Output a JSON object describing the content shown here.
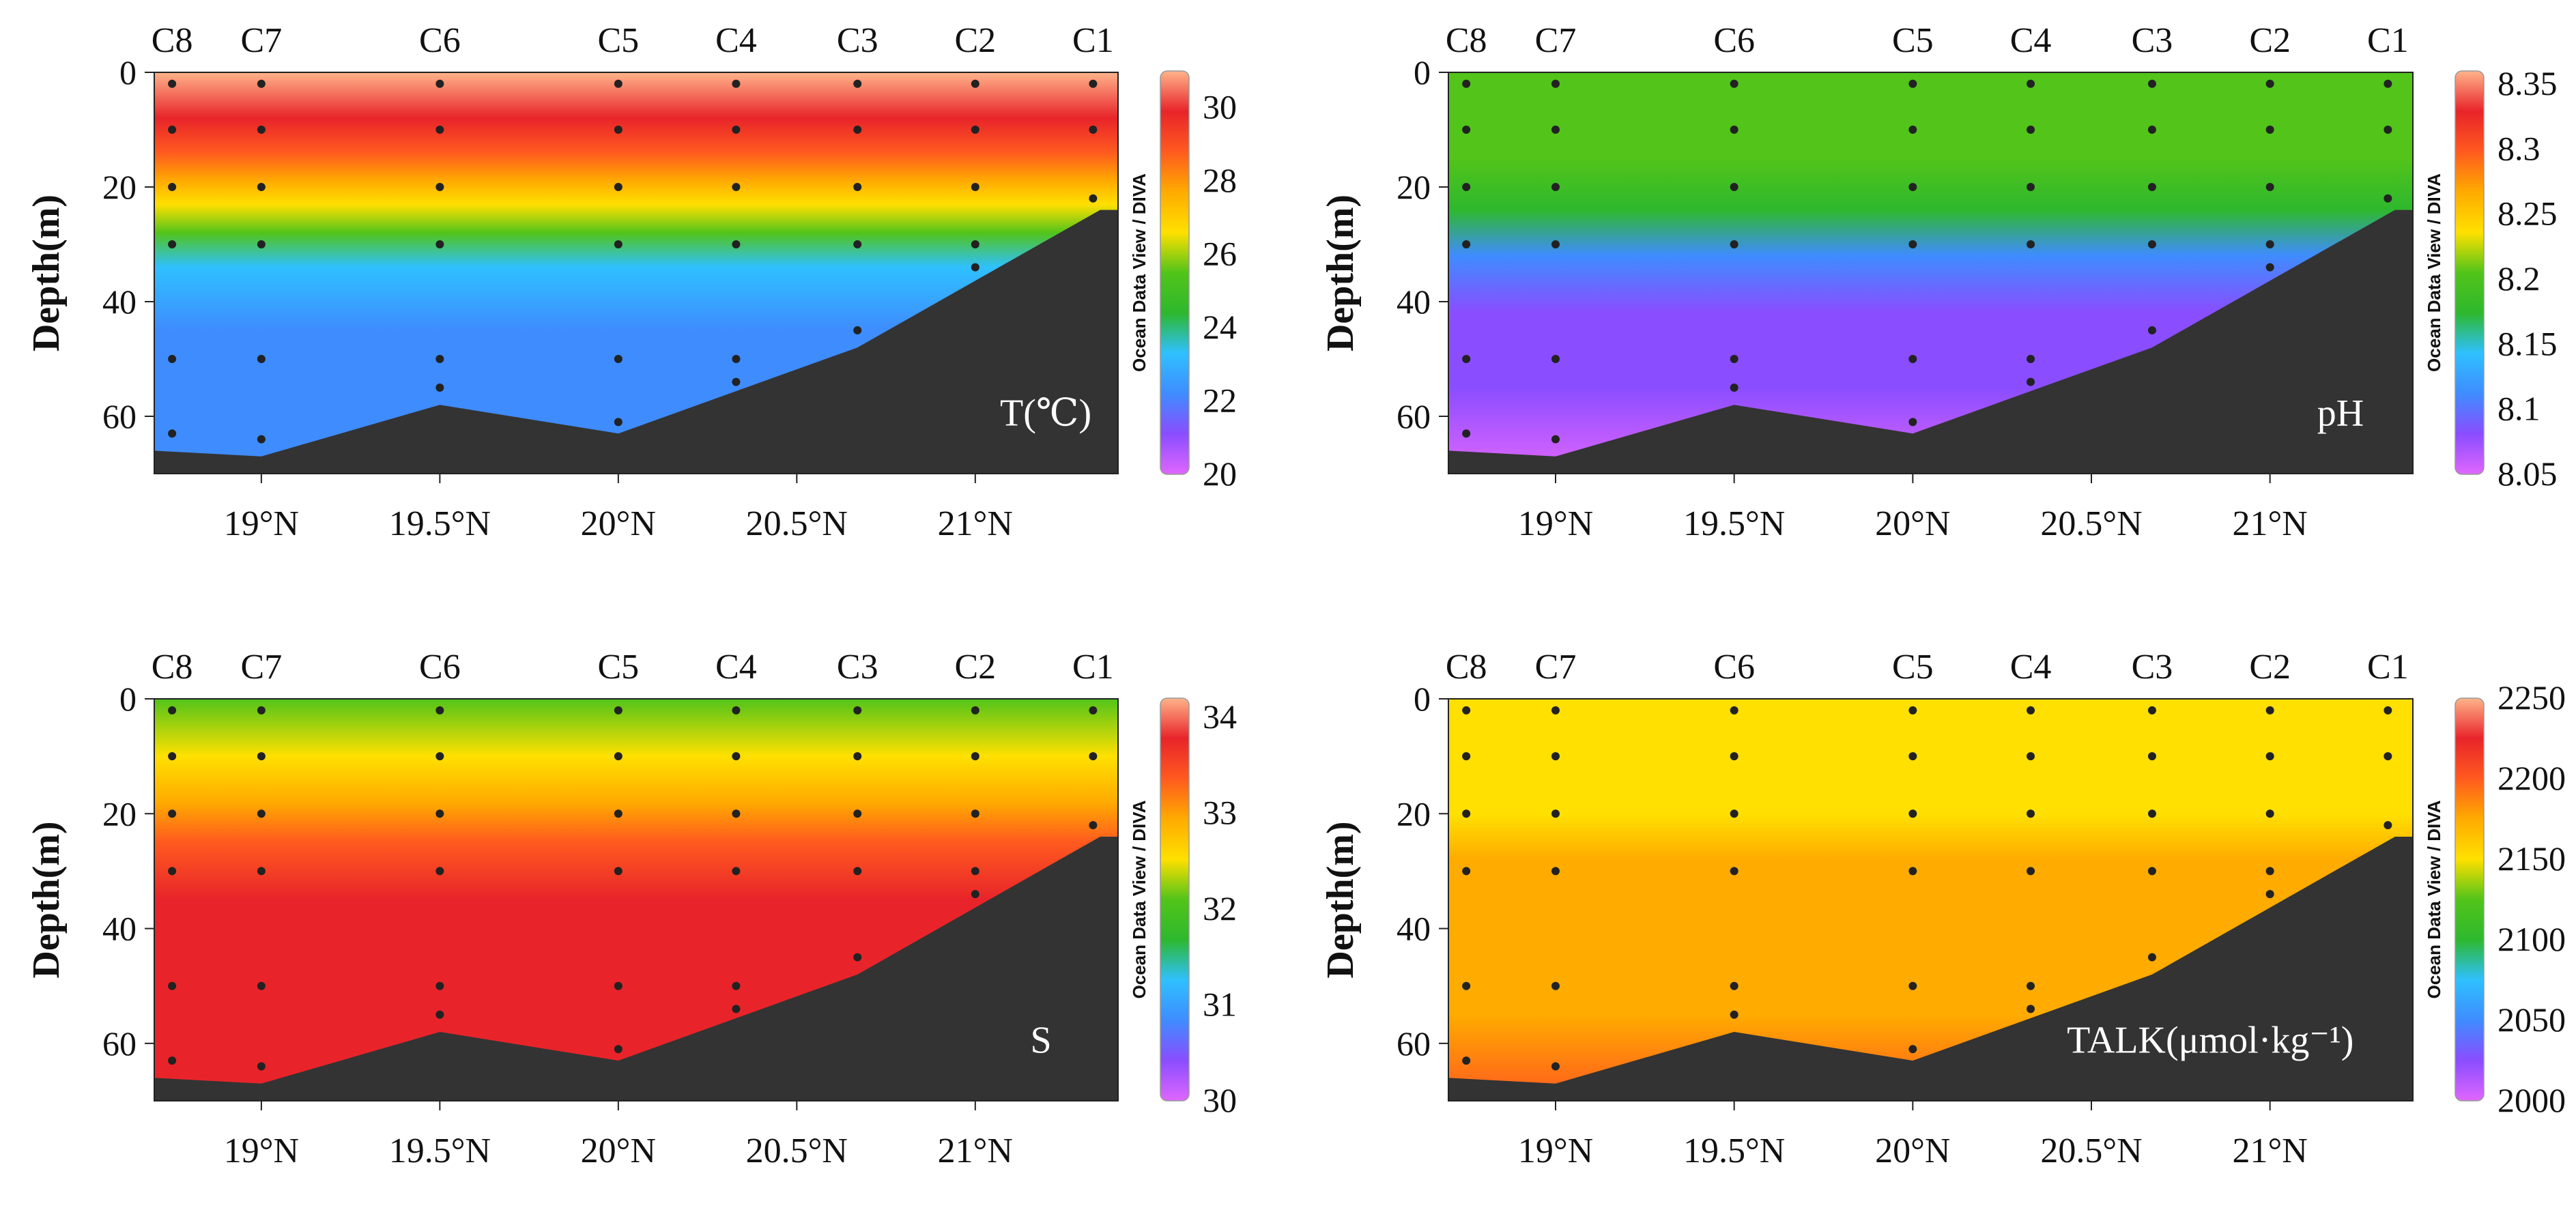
{
  "chart_data": [
    {
      "type": "heatmap",
      "name": "temperature",
      "label": "T(℃)",
      "ylabel": "Depth(m)",
      "colorbar_label": "Ocean Data View / DIVA",
      "x_range": [
        18.7,
        21.4
      ],
      "x_ticks": [
        19,
        19.5,
        20,
        20.5,
        21
      ],
      "x_tick_labels": [
        "19°N",
        "19.5°N",
        "20°N",
        "20.5°N",
        "21°N"
      ],
      "y_range": [
        0,
        70
      ],
      "y_ticks": [
        0,
        20,
        40,
        60
      ],
      "y_tick_labels": [
        "0",
        "20",
        "40",
        "60"
      ],
      "stations": [
        {
          "name": "C8",
          "lat": 18.75
        },
        {
          "name": "C7",
          "lat": 19.0
        },
        {
          "name": "C6",
          "lat": 19.5
        },
        {
          "name": "C5",
          "lat": 20.0
        },
        {
          "name": "C4",
          "lat": 20.33
        },
        {
          "name": "C3",
          "lat": 20.67
        },
        {
          "name": "C2",
          "lat": 21.0
        },
        {
          "name": "C1",
          "lat": 21.33
        }
      ],
      "colorbar": {
        "min": 20,
        "max": 31,
        "ticks": [
          20,
          22,
          24,
          26,
          28,
          30
        ],
        "tick_labels": [
          "20",
          "22",
          "24",
          "26",
          "28",
          "30"
        ]
      },
      "profile": [
        {
          "depth": 0,
          "value": 30.6
        },
        {
          "depth": 8,
          "value": 30.2
        },
        {
          "depth": 14,
          "value": 29.2
        },
        {
          "depth": 19,
          "value": 28.0
        },
        {
          "depth": 23,
          "value": 26.5
        },
        {
          "depth": 28,
          "value": 25.2
        },
        {
          "depth": 34,
          "value": 23.8
        },
        {
          "depth": 45,
          "value": 22.6
        },
        {
          "depth": 70,
          "value": 22.0
        }
      ]
    },
    {
      "type": "heatmap",
      "name": "ph",
      "label": "pH",
      "ylabel": "Depth(m)",
      "colorbar_label": "Ocean Data View / DIVA",
      "x_range": [
        18.7,
        21.4
      ],
      "x_ticks": [
        19,
        19.5,
        20,
        20.5,
        21
      ],
      "x_tick_labels": [
        "19°N",
        "19.5°N",
        "20°N",
        "20.5°N",
        "21°N"
      ],
      "y_range": [
        0,
        70
      ],
      "y_ticks": [
        0,
        20,
        40,
        60
      ],
      "y_tick_labels": [
        "0",
        "20",
        "40",
        "60"
      ],
      "stations": [
        {
          "name": "C8",
          "lat": 18.75
        },
        {
          "name": "C7",
          "lat": 19.0
        },
        {
          "name": "C6",
          "lat": 19.5
        },
        {
          "name": "C5",
          "lat": 20.0
        },
        {
          "name": "C4",
          "lat": 20.33
        },
        {
          "name": "C3",
          "lat": 20.67
        },
        {
          "name": "C2",
          "lat": 21.0
        },
        {
          "name": "C1",
          "lat": 21.33
        }
      ],
      "colorbar": {
        "min": 8.05,
        "max": 8.36,
        "ticks": [
          8.05,
          8.1,
          8.15,
          8.2,
          8.25,
          8.3,
          8.35
        ],
        "tick_labels": [
          "8.05",
          "8.1",
          "8.15",
          "8.2",
          "8.25",
          "8.3",
          "8.35"
        ]
      },
      "profile": [
        {
          "depth": 0,
          "value": 8.21
        },
        {
          "depth": 15,
          "value": 8.21
        },
        {
          "depth": 24,
          "value": 8.17
        },
        {
          "depth": 32,
          "value": 8.12
        },
        {
          "depth": 42,
          "value": 8.09
        },
        {
          "depth": 55,
          "value": 8.07
        },
        {
          "depth": 70,
          "value": 8.06
        }
      ]
    },
    {
      "type": "heatmap",
      "name": "salinity",
      "label": "S",
      "ylabel": "Depth(m)",
      "colorbar_label": "Ocean Data View / DIVA",
      "x_range": [
        18.7,
        21.4
      ],
      "x_ticks": [
        19,
        19.5,
        20,
        20.5,
        21
      ],
      "x_tick_labels": [
        "19°N",
        "19.5°N",
        "20°N",
        "20.5°N",
        "21°N"
      ],
      "y_range": [
        0,
        70
      ],
      "y_ticks": [
        0,
        20,
        40,
        60
      ],
      "y_tick_labels": [
        "0",
        "20",
        "40",
        "60"
      ],
      "stations": [
        {
          "name": "C8",
          "lat": 18.75
        },
        {
          "name": "C7",
          "lat": 19.0
        },
        {
          "name": "C6",
          "lat": 19.5
        },
        {
          "name": "C5",
          "lat": 20.0
        },
        {
          "name": "C4",
          "lat": 20.33
        },
        {
          "name": "C3",
          "lat": 20.67
        },
        {
          "name": "C2",
          "lat": 21.0
        },
        {
          "name": "C1",
          "lat": 21.33
        }
      ],
      "colorbar": {
        "min": 30,
        "max": 34.2,
        "ticks": [
          30,
          31,
          32,
          33,
          34
        ],
        "tick_labels": [
          "30",
          "31",
          "32",
          "33",
          "34"
        ]
      },
      "profile": [
        {
          "depth": 0,
          "value": 32.3
        },
        {
          "depth": 10,
          "value": 32.4
        },
        {
          "depth": 18,
          "value": 32.9
        },
        {
          "depth": 25,
          "value": 33.3
        },
        {
          "depth": 35,
          "value": 33.6
        },
        {
          "depth": 50,
          "value": 33.7
        },
        {
          "depth": 70,
          "value": 33.8
        }
      ]
    },
    {
      "type": "heatmap",
      "name": "alkalinity",
      "label": "TALK(μmol·kg⁻¹)",
      "ylabel": "Depth(m)",
      "colorbar_label": "Ocean Data View / DIVA",
      "x_range": [
        18.7,
        21.4
      ],
      "x_ticks": [
        19,
        19.5,
        20,
        20.5,
        21
      ],
      "x_tick_labels": [
        "19°N",
        "19.5°N",
        "20°N",
        "20.5°N",
        "21°N"
      ],
      "y_range": [
        0,
        70
      ],
      "y_ticks": [
        0,
        20,
        40,
        60
      ],
      "y_tick_labels": [
        "0",
        "20",
        "40",
        "60"
      ],
      "stations": [
        {
          "name": "C8",
          "lat": 18.75
        },
        {
          "name": "C7",
          "lat": 19.0
        },
        {
          "name": "C6",
          "lat": 19.5
        },
        {
          "name": "C5",
          "lat": 20.0
        },
        {
          "name": "C4",
          "lat": 20.33
        },
        {
          "name": "C3",
          "lat": 20.67
        },
        {
          "name": "C2",
          "lat": 21.0
        },
        {
          "name": "C1",
          "lat": 21.33
        }
      ],
      "colorbar": {
        "min": 2000,
        "max": 2250,
        "ticks": [
          2000,
          2050,
          2100,
          2150,
          2200,
          2250
        ],
        "tick_labels": [
          "2000",
          "2050",
          "2100",
          "2150",
          "2200",
          "2250"
        ]
      },
      "profile": [
        {
          "depth": 0,
          "value": 2140
        },
        {
          "depth": 12,
          "value": 2145
        },
        {
          "depth": 20,
          "value": 2160
        },
        {
          "depth": 28,
          "value": 2172
        },
        {
          "depth": 40,
          "value": 2178
        },
        {
          "depth": 55,
          "value": 2185
        },
        {
          "depth": 70,
          "value": 2195
        }
      ]
    }
  ],
  "bathymetry": [
    {
      "lat": 18.7,
      "depth": 66
    },
    {
      "lat": 19.0,
      "depth": 67
    },
    {
      "lat": 19.5,
      "depth": 58
    },
    {
      "lat": 20.0,
      "depth": 63
    },
    {
      "lat": 20.67,
      "depth": 48
    },
    {
      "lat": 21.35,
      "depth": 24
    },
    {
      "lat": 21.4,
      "depth": 24
    }
  ],
  "samples": [
    {
      "lat": 18.75,
      "depths": [
        2,
        10,
        20,
        30,
        50,
        63
      ]
    },
    {
      "lat": 19.0,
      "depths": [
        2,
        10,
        20,
        30,
        50,
        64
      ]
    },
    {
      "lat": 19.5,
      "depths": [
        2,
        10,
        20,
        30,
        50,
        55
      ]
    },
    {
      "lat": 20.0,
      "depths": [
        2,
        10,
        20,
        30,
        50,
        61
      ]
    },
    {
      "lat": 20.33,
      "depths": [
        2,
        10,
        20,
        30,
        50,
        54
      ]
    },
    {
      "lat": 20.67,
      "depths": [
        2,
        10,
        20,
        30,
        45
      ]
    },
    {
      "lat": 21.0,
      "depths": [
        2,
        10,
        20,
        30,
        34
      ]
    },
    {
      "lat": 21.33,
      "depths": [
        2,
        10,
        22
      ]
    }
  ],
  "colormap": [
    "#e066ff",
    "#8a4dff",
    "#3f8cff",
    "#2fc0ff",
    "#2eb82e",
    "#52c41a",
    "#ffe000",
    "#ffab00",
    "#ff5a1f",
    "#e8242a",
    "#ffb38a"
  ]
}
